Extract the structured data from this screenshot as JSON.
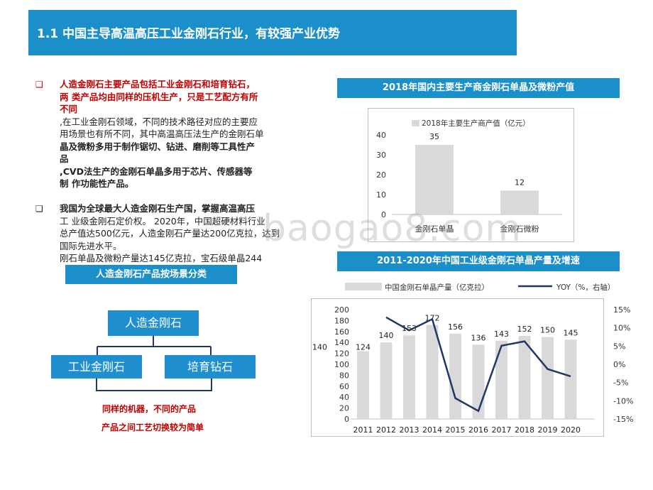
{
  "title": "1.1 中国主导高温高压工业金刚石行业，有较强产业优势",
  "left": {
    "bullet1_lines": [
      "人造金刚石主要产品包括工业金刚石和培育钻石，",
      "两 类产品均由同样的压机生产，只是工艺配方有所",
      "不同"
    ],
    "bullet1_body": [
      ",在工业金刚石领域，不同的技术路径对应的主要应",
      "用场景也有所不同，其中高温高压法生产的金刚石单",
      "晶及微粉多用于制作锯切、钻进、磨削等工具性产",
      "品",
      ",CVD法生产的金刚石单晶多用于芯片、传感器等",
      "制 作功能性产品。"
    ],
    "bullet2_lines": [
      "我国为全球最大人造金刚石生产国，掌握高温高压",
      "工 业级金刚石定价权。 2020年，中国超硬材料行业",
      "总产值达500亿元，人造金刚石产量达200亿克拉，达到",
      "国际先进水平。",
      "刚石单晶及微粉产量达145亿克拉，宝石级单晶244"
    ],
    "bullet_mark": "❑",
    "section_label": "人造金刚石产品按场景分类",
    "diagram": {
      "root": "人造金刚石",
      "child_left": "工业金刚石",
      "child_right": "培育钻石",
      "note_line1": "同样的机器，不同的产品",
      "note_line2": "产品之间工艺切换较为简单"
    }
  },
  "watermark": "baogao8.com",
  "chart_data": [
    {
      "type": "bar",
      "title": "2018年国内主要生产商金刚石单晶及微粉产值",
      "legend": "2018年主要生产商产值（亿元）",
      "categories": [
        "金刚石单晶",
        "金刚石微粉"
      ],
      "values": [
        35,
        12
      ],
      "ylim": [
        0,
        40
      ],
      "yticks": [
        0,
        10,
        20,
        30,
        40
      ],
      "bar_color": "#d9d9d9"
    },
    {
      "type": "bar+line",
      "title": "2011-2020年中国工业级金刚石单晶产量及增速",
      "legend_bar": "中国金刚石单晶产量（亿克拉）",
      "legend_line": "YOY（%，右轴）",
      "categories": [
        "2011",
        "2012",
        "2013",
        "2014",
        "2015",
        "2016",
        "2017",
        "2018",
        "2019",
        "2020"
      ],
      "bar_values": [
        124,
        140,
        153,
        172,
        156,
        136,
        143,
        152,
        150,
        145
      ],
      "extra_label": "140",
      "yoy_values": [
        null,
        12.9,
        9.3,
        12.4,
        -9.3,
        -12.8,
        5.1,
        6.3,
        -1.3,
        -3.3
      ],
      "ylim_left": [
        0,
        200
      ],
      "yticks_left": [
        0,
        20,
        40,
        60,
        80,
        100,
        120,
        140,
        160,
        180,
        200
      ],
      "ylim_right": [
        -15,
        15
      ],
      "yticks_right": [
        "-15%",
        "-10%",
        "-5%",
        "0%",
        "5%",
        "10%",
        "15%"
      ],
      "bar_color": "#d9d9d9",
      "line_color": "#1f3864"
    }
  ]
}
